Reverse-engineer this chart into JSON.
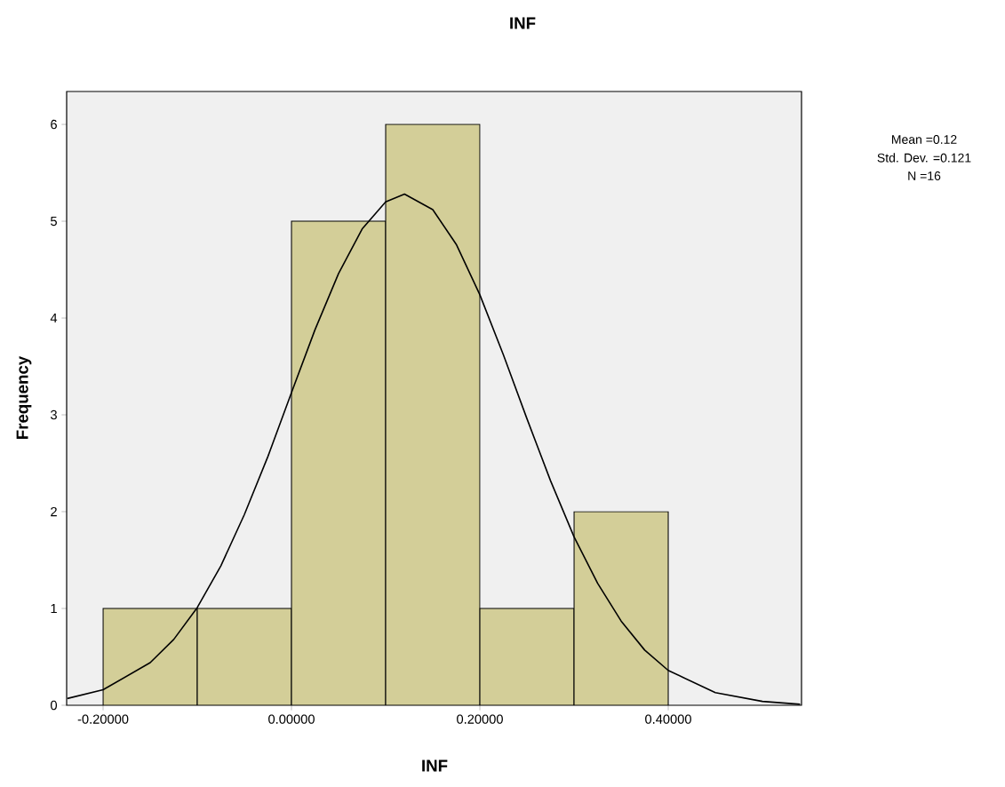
{
  "chart_data": {
    "type": "histogram",
    "title": "INF",
    "xlabel": "INF",
    "ylabel": "Frequency",
    "bins": [
      -0.2,
      -0.1,
      0.0,
      0.1,
      0.2,
      0.3,
      0.4
    ],
    "values": [
      1,
      1,
      5,
      6,
      1,
      2
    ],
    "color": "#d3ce98",
    "series": [
      {
        "type": "line",
        "color": "#000000",
        "x": [
          -0.238,
          -0.2,
          -0.15,
          -0.125,
          -0.1,
          -0.075,
          -0.05,
          -0.025,
          0.0,
          0.025,
          0.05,
          0.075,
          0.1,
          0.12,
          0.15,
          0.175,
          0.2,
          0.225,
          0.25,
          0.275,
          0.3,
          0.325,
          0.35,
          0.375,
          0.4,
          0.45,
          0.5,
          0.54
        ],
        "values": [
          0.07,
          0.16,
          0.44,
          0.68,
          1.01,
          1.44,
          1.97,
          2.57,
          3.23,
          3.88,
          4.46,
          4.92,
          5.2,
          5.28,
          5.12,
          4.76,
          4.24,
          3.62,
          2.96,
          2.32,
          1.74,
          1.26,
          0.87,
          0.57,
          0.36,
          0.13,
          0.04,
          0.01
        ]
      }
    ],
    "xlim": [
      -0.2387,
      0.5415
    ],
    "ylim": [
      0,
      6.34
    ],
    "xticks": [
      {
        "value": -0.2,
        "label": "-0.20000"
      },
      {
        "value": 0.0,
        "label": "0.00000"
      },
      {
        "value": 0.2,
        "label": "0.20000"
      },
      {
        "value": 0.4,
        "label": "0.40000"
      }
    ],
    "yticks": [
      0,
      1,
      2,
      3,
      4,
      5,
      6
    ],
    "grid": false,
    "annotations": [
      "Mean =0.12",
      "Std. Dev. =0.121",
      "N =16"
    ]
  }
}
